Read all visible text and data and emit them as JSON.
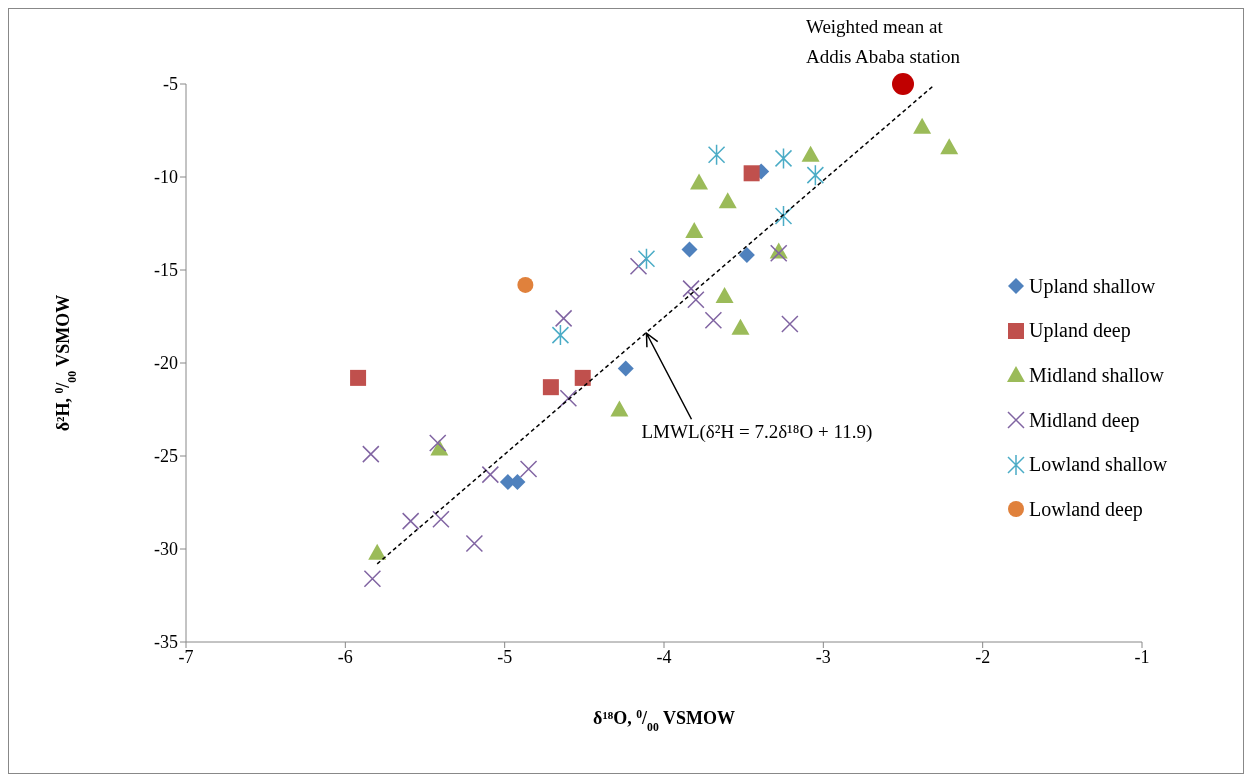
{
  "chart_data": {
    "type": "scatter",
    "xlabel": "δ¹⁸O, $^{0}$/$_{00}$ VSMOW",
    "ylabel": "δ²H, $^{0}$/$_{00}$ VSMOW",
    "xlim": [
      -7,
      -1
    ],
    "xticks": [
      -7,
      -6,
      -5,
      -4,
      -3,
      -2,
      -1
    ],
    "ylim": [
      -35,
      -5
    ],
    "yticks": [
      -35,
      -30,
      -25,
      -20,
      -15,
      -10,
      -5
    ],
    "legend": "right",
    "series": [
      {
        "name": "Upland shallow",
        "color": "#4f81bd",
        "marker": "diamond",
        "x": [
          -3.84,
          -3.48,
          -4.24,
          -4.98,
          -4.92,
          -3.39
        ],
        "values": [
          -13.9,
          -14.2,
          -20.3,
          -26.4,
          -26.4,
          -9.7
        ]
      },
      {
        "name": "Upland deep",
        "color": "#c0504d",
        "marker": "square",
        "x": [
          -5.92,
          -4.71,
          -4.51,
          -3.45
        ],
        "values": [
          -20.8,
          -21.3,
          -20.8,
          -9.8
        ]
      },
      {
        "name": "Midland shallow",
        "color": "#9bbb59",
        "marker": "triangle",
        "x": [
          -2.38,
          -2.21,
          -3.08,
          -3.78,
          -3.6,
          -3.81,
          -3.28,
          -3.62,
          -3.52,
          -4.28,
          -5.41,
          -5.8
        ],
        "values": [
          -7.3,
          -8.4,
          -8.8,
          -10.3,
          -11.3,
          -12.9,
          -14.0,
          -16.4,
          -18.1,
          -22.5,
          -24.6,
          -30.2
        ]
      },
      {
        "name": "Midland deep",
        "color": "#8064a2",
        "marker": "cross",
        "x": [
          -4.63,
          -4.6,
          -5.84,
          -5.42,
          -5.09,
          -4.85,
          -5.59,
          -5.4,
          -5.19,
          -5.83,
          -4.16,
          -3.28,
          -3.83,
          -3.8,
          -3.69,
          -3.21
        ],
        "values": [
          -17.6,
          -21.9,
          -24.9,
          -24.3,
          -26.0,
          -25.7,
          -28.5,
          -28.4,
          -29.7,
          -31.6,
          -14.8,
          -14.1,
          -16.0,
          -16.6,
          -17.7,
          -17.9
        ]
      },
      {
        "name": "Lowland shallow",
        "color": "#4bacc6",
        "x": [
          -3.67,
          -3.25,
          -3.05,
          -3.25,
          -4.11,
          -4.65
        ],
        "values": [
          -8.8,
          -9.0,
          -9.9,
          -12.1,
          -14.4,
          -18.5
        ]
      },
      {
        "name": "Lowland deep",
        "color": "#e0813c",
        "marker": "circle",
        "x": [
          -4.87
        ],
        "values": [
          -15.8
        ]
      },
      {
        "color": "#c00000",
        "marker": "circle",
        "x": [
          -2.5
        ],
        "values": [
          -5.0
        ]
      },
      {
        "type": "line",
        "color": "#000000",
        "line_style": "dashed",
        "marker": "none",
        "x": [
          -5.8,
          -2.31
        ],
        "values": [
          -30.8,
          -5.1
        ]
      }
    ],
    "annotations": [
      {
        "text": "Weighted mean at\nAddis Ababa station",
        "x": -2.5,
        "y": -5.0
      },
      {
        "text": "LMWL(δ²H = 7.2δ¹⁸O + 11.9)",
        "x": -4.11,
        "y": -18.4
      }
    ]
  }
}
